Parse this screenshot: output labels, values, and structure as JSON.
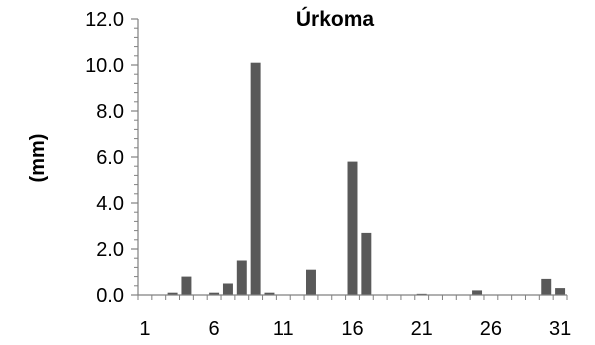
{
  "chart_data": {
    "type": "bar",
    "title": "Úrkoma",
    "xlabel": "",
    "ylabel": "(mm)",
    "categories": [
      1,
      2,
      3,
      4,
      5,
      6,
      7,
      8,
      9,
      10,
      11,
      12,
      13,
      14,
      15,
      16,
      17,
      18,
      19,
      20,
      21,
      22,
      23,
      24,
      25,
      26,
      27,
      28,
      29,
      30,
      31
    ],
    "x_tick_labels": [
      "1",
      "6",
      "11",
      "16",
      "21",
      "26",
      "31"
    ],
    "y_tick_labels": [
      "0.0",
      "2.0",
      "4.0",
      "6.0",
      "8.0",
      "10.0",
      "12.0"
    ],
    "values": [
      0,
      0,
      0.1,
      0.8,
      0,
      0.1,
      0.5,
      1.5,
      10.1,
      0.1,
      0,
      0,
      1.1,
      0,
      0,
      5.8,
      2.7,
      0,
      0,
      0,
      0.05,
      0,
      0,
      0,
      0.2,
      0,
      0,
      0,
      0,
      0.7,
      0.3
    ],
    "ylim": [
      0,
      12
    ],
    "grid": false,
    "bar_color": "#595959",
    "axis_color": "#808080"
  }
}
